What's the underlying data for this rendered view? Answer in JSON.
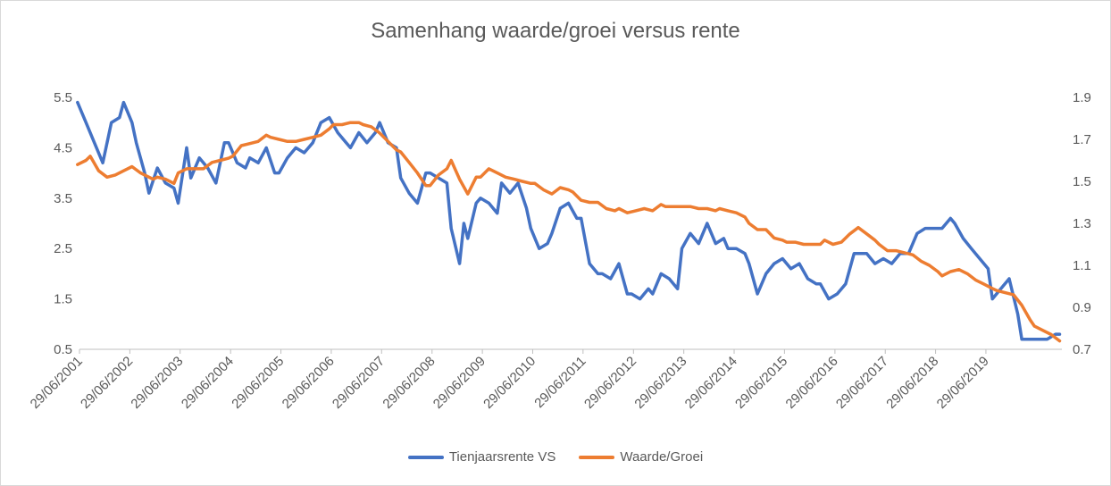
{
  "chart_data": {
    "type": "line",
    "title": "Samenhang waarde/groei versus rente",
    "xlabel": "",
    "ylabel": "",
    "x_range": [
      "2001-06-29",
      "2020-12-31"
    ],
    "x_tick_labels": [
      "29/06/2001",
      "29/06/2002",
      "29/06/2003",
      "29/06/2004",
      "29/06/2005",
      "29/06/2006",
      "29/06/2007",
      "29/06/2008",
      "29/06/2009",
      "29/06/2010",
      "29/06/2011",
      "29/06/2012",
      "29/06/2013",
      "29/06/2014",
      "29/06/2015",
      "29/06/2016",
      "29/06/2017",
      "29/06/2018",
      "29/06/2019"
    ],
    "y_left": {
      "min": 0.5,
      "max": 5.5,
      "ticks": [
        "0.5",
        "1.5",
        "2.5",
        "3.5",
        "4.5",
        "5.5"
      ]
    },
    "y_right": {
      "min": 0.7,
      "max": 1.9,
      "ticks": [
        "0.7",
        "0.9",
        "1.1",
        "1.3",
        "1.5",
        "1.7",
        "1.9"
      ]
    },
    "grid": false,
    "legend_position": "bottom",
    "series": [
      {
        "name": "Tienjaarsrente VS",
        "axis": "left",
        "color": "#4472C4",
        "points": [
          [
            "2001-06",
            5.4
          ],
          [
            "2001-08",
            5.0
          ],
          [
            "2001-10",
            4.6
          ],
          [
            "2001-12",
            4.2
          ],
          [
            "2002-02",
            5.0
          ],
          [
            "2002-04",
            5.1
          ],
          [
            "2002-05",
            5.4
          ],
          [
            "2002-07",
            5.0
          ],
          [
            "2002-08",
            4.6
          ],
          [
            "2002-10",
            4.0
          ],
          [
            "2002-11",
            3.6
          ],
          [
            "2003-01",
            4.1
          ],
          [
            "2003-03",
            3.8
          ],
          [
            "2003-05",
            3.7
          ],
          [
            "2003-06",
            3.4
          ],
          [
            "2003-08",
            4.5
          ],
          [
            "2003-09",
            3.9
          ],
          [
            "2003-11",
            4.3
          ],
          [
            "2004-01",
            4.1
          ],
          [
            "2004-03",
            3.8
          ],
          [
            "2004-05",
            4.6
          ],
          [
            "2004-06",
            4.6
          ],
          [
            "2004-08",
            4.2
          ],
          [
            "2004-10",
            4.1
          ],
          [
            "2004-11",
            4.3
          ],
          [
            "2005-01",
            4.2
          ],
          [
            "2005-03",
            4.5
          ],
          [
            "2005-05",
            4.0
          ],
          [
            "2005-06",
            4.0
          ],
          [
            "2005-08",
            4.3
          ],
          [
            "2005-10",
            4.5
          ],
          [
            "2005-12",
            4.4
          ],
          [
            "2006-02",
            4.6
          ],
          [
            "2006-04",
            5.0
          ],
          [
            "2006-06",
            5.1
          ],
          [
            "2006-08",
            4.8
          ],
          [
            "2006-10",
            4.6
          ],
          [
            "2006-11",
            4.5
          ],
          [
            "2007-01",
            4.8
          ],
          [
            "2007-03",
            4.6
          ],
          [
            "2007-05",
            4.8
          ],
          [
            "2007-06",
            5.0
          ],
          [
            "2007-08",
            4.6
          ],
          [
            "2007-10",
            4.5
          ],
          [
            "2007-11",
            3.9
          ],
          [
            "2008-01",
            3.6
          ],
          [
            "2008-03",
            3.4
          ],
          [
            "2008-05",
            4.0
          ],
          [
            "2008-06",
            4.0
          ],
          [
            "2008-08",
            3.9
          ],
          [
            "2008-10",
            3.8
          ],
          [
            "2008-11",
            2.9
          ],
          [
            "2009-01",
            2.2
          ],
          [
            "2009-02",
            3.0
          ],
          [
            "2009-03",
            2.7
          ],
          [
            "2009-05",
            3.4
          ],
          [
            "2009-06",
            3.5
          ],
          [
            "2009-08",
            3.4
          ],
          [
            "2009-10",
            3.2
          ],
          [
            "2009-11",
            3.8
          ],
          [
            "2010-01",
            3.6
          ],
          [
            "2010-03",
            3.8
          ],
          [
            "2010-05",
            3.3
          ],
          [
            "2010-06",
            2.9
          ],
          [
            "2010-08",
            2.5
          ],
          [
            "2010-10",
            2.6
          ],
          [
            "2010-11",
            2.8
          ],
          [
            "2011-01",
            3.3
          ],
          [
            "2011-03",
            3.4
          ],
          [
            "2011-05",
            3.1
          ],
          [
            "2011-06",
            3.1
          ],
          [
            "2011-08",
            2.2
          ],
          [
            "2011-10",
            2.0
          ],
          [
            "2011-11",
            2.0
          ],
          [
            "2012-01",
            1.9
          ],
          [
            "2012-03",
            2.2
          ],
          [
            "2012-05",
            1.6
          ],
          [
            "2012-06",
            1.6
          ],
          [
            "2012-08",
            1.5
          ],
          [
            "2012-10",
            1.7
          ],
          [
            "2012-11",
            1.6
          ],
          [
            "2013-01",
            2.0
          ],
          [
            "2013-03",
            1.9
          ],
          [
            "2013-05",
            1.7
          ],
          [
            "2013-06",
            2.5
          ],
          [
            "2013-08",
            2.8
          ],
          [
            "2013-10",
            2.6
          ],
          [
            "2013-12",
            3.0
          ],
          [
            "2014-02",
            2.6
          ],
          [
            "2014-04",
            2.7
          ],
          [
            "2014-05",
            2.5
          ],
          [
            "2014-07",
            2.5
          ],
          [
            "2014-09",
            2.4
          ],
          [
            "2014-10",
            2.2
          ],
          [
            "2014-12",
            1.6
          ],
          [
            "2015-02",
            2.0
          ],
          [
            "2015-04",
            2.2
          ],
          [
            "2015-06",
            2.3
          ],
          [
            "2015-08",
            2.1
          ],
          [
            "2015-10",
            2.2
          ],
          [
            "2015-12",
            1.9
          ],
          [
            "2016-02",
            1.8
          ],
          [
            "2016-03",
            1.8
          ],
          [
            "2016-05",
            1.5
          ],
          [
            "2016-07",
            1.6
          ],
          [
            "2016-09",
            1.8
          ],
          [
            "2016-11",
            2.4
          ],
          [
            "2016-12",
            2.4
          ],
          [
            "2017-02",
            2.4
          ],
          [
            "2017-04",
            2.2
          ],
          [
            "2017-06",
            2.3
          ],
          [
            "2017-08",
            2.2
          ],
          [
            "2017-10",
            2.4
          ],
          [
            "2017-12",
            2.4
          ],
          [
            "2018-02",
            2.8
          ],
          [
            "2018-04",
            2.9
          ],
          [
            "2018-06",
            2.9
          ],
          [
            "2018-08",
            2.9
          ],
          [
            "2018-10",
            3.1
          ],
          [
            "2018-11",
            3.0
          ],
          [
            "2019-01",
            2.7
          ],
          [
            "2019-03",
            2.5
          ],
          [
            "2019-05",
            2.3
          ],
          [
            "2019-07",
            2.1
          ],
          [
            "2019-08",
            1.5
          ],
          [
            "2019-10",
            1.7
          ],
          [
            "2019-12",
            1.9
          ],
          [
            "2020-02",
            1.2
          ],
          [
            "2020-03",
            0.7
          ],
          [
            "2020-05",
            0.7
          ],
          [
            "2020-07",
            0.7
          ],
          [
            "2020-09",
            0.7
          ],
          [
            "2020-11",
            0.8
          ],
          [
            "2020-12",
            0.8
          ]
        ]
      },
      {
        "name": "Waarde/Groei",
        "axis": "right",
        "color": "#ED7D31",
        "points": [
          [
            "2001-06",
            1.58
          ],
          [
            "2001-08",
            1.6
          ],
          [
            "2001-09",
            1.62
          ],
          [
            "2001-11",
            1.55
          ],
          [
            "2002-01",
            1.52
          ],
          [
            "2002-03",
            1.53
          ],
          [
            "2002-05",
            1.55
          ],
          [
            "2002-07",
            1.57
          ],
          [
            "2002-09",
            1.54
          ],
          [
            "2002-10",
            1.53
          ],
          [
            "2002-12",
            1.51
          ],
          [
            "2003-01",
            1.52
          ],
          [
            "2003-03",
            1.51
          ],
          [
            "2003-05",
            1.49
          ],
          [
            "2003-06",
            1.54
          ],
          [
            "2003-08",
            1.56
          ],
          [
            "2003-10",
            1.56
          ],
          [
            "2003-12",
            1.56
          ],
          [
            "2004-02",
            1.59
          ],
          [
            "2004-04",
            1.6
          ],
          [
            "2004-06",
            1.61
          ],
          [
            "2004-07",
            1.62
          ],
          [
            "2004-09",
            1.67
          ],
          [
            "2004-11",
            1.68
          ],
          [
            "2005-01",
            1.69
          ],
          [
            "2005-03",
            1.72
          ],
          [
            "2005-04",
            1.71
          ],
          [
            "2005-06",
            1.7
          ],
          [
            "2005-08",
            1.69
          ],
          [
            "2005-10",
            1.69
          ],
          [
            "2005-12",
            1.7
          ],
          [
            "2006-02",
            1.71
          ],
          [
            "2006-04",
            1.72
          ],
          [
            "2006-06",
            1.75
          ],
          [
            "2006-07",
            1.77
          ],
          [
            "2006-09",
            1.77
          ],
          [
            "2006-11",
            1.78
          ],
          [
            "2007-01",
            1.78
          ],
          [
            "2007-02",
            1.77
          ],
          [
            "2007-04",
            1.76
          ],
          [
            "2007-06",
            1.73
          ],
          [
            "2007-08",
            1.69
          ],
          [
            "2007-10",
            1.65
          ],
          [
            "2007-11",
            1.64
          ],
          [
            "2008-01",
            1.59
          ],
          [
            "2008-03",
            1.54
          ],
          [
            "2008-05",
            1.48
          ],
          [
            "2008-06",
            1.48
          ],
          [
            "2008-08",
            1.53
          ],
          [
            "2008-10",
            1.56
          ],
          [
            "2008-11",
            1.6
          ],
          [
            "2009-01",
            1.51
          ],
          [
            "2009-03",
            1.44
          ],
          [
            "2009-05",
            1.52
          ],
          [
            "2009-06",
            1.52
          ],
          [
            "2009-08",
            1.56
          ],
          [
            "2009-10",
            1.54
          ],
          [
            "2009-12",
            1.52
          ],
          [
            "2010-02",
            1.51
          ],
          [
            "2010-04",
            1.5
          ],
          [
            "2010-06",
            1.49
          ],
          [
            "2010-07",
            1.49
          ],
          [
            "2010-09",
            1.46
          ],
          [
            "2010-11",
            1.44
          ],
          [
            "2011-01",
            1.47
          ],
          [
            "2011-03",
            1.46
          ],
          [
            "2011-04",
            1.45
          ],
          [
            "2011-06",
            1.41
          ],
          [
            "2011-08",
            1.4
          ],
          [
            "2011-10",
            1.4
          ],
          [
            "2011-12",
            1.37
          ],
          [
            "2012-02",
            1.36
          ],
          [
            "2012-03",
            1.37
          ],
          [
            "2012-05",
            1.35
          ],
          [
            "2012-07",
            1.36
          ],
          [
            "2012-09",
            1.37
          ],
          [
            "2012-11",
            1.36
          ],
          [
            "2013-01",
            1.39
          ],
          [
            "2013-02",
            1.38
          ],
          [
            "2013-04",
            1.38
          ],
          [
            "2013-06",
            1.38
          ],
          [
            "2013-08",
            1.38
          ],
          [
            "2013-10",
            1.37
          ],
          [
            "2013-12",
            1.37
          ],
          [
            "2014-02",
            1.36
          ],
          [
            "2014-03",
            1.37
          ],
          [
            "2014-05",
            1.36
          ],
          [
            "2014-07",
            1.35
          ],
          [
            "2014-09",
            1.33
          ],
          [
            "2014-10",
            1.3
          ],
          [
            "2014-12",
            1.27
          ],
          [
            "2015-02",
            1.27
          ],
          [
            "2015-04",
            1.23
          ],
          [
            "2015-06",
            1.22
          ],
          [
            "2015-07",
            1.21
          ],
          [
            "2015-09",
            1.21
          ],
          [
            "2015-11",
            1.2
          ],
          [
            "2016-01",
            1.2
          ],
          [
            "2016-03",
            1.2
          ],
          [
            "2016-04",
            1.22
          ],
          [
            "2016-06",
            1.2
          ],
          [
            "2016-08",
            1.21
          ],
          [
            "2016-10",
            1.25
          ],
          [
            "2016-12",
            1.28
          ],
          [
            "2017-02",
            1.25
          ],
          [
            "2017-04",
            1.22
          ],
          [
            "2017-05",
            1.2
          ],
          [
            "2017-07",
            1.17
          ],
          [
            "2017-09",
            1.17
          ],
          [
            "2017-11",
            1.16
          ],
          [
            "2018-01",
            1.15
          ],
          [
            "2018-03",
            1.12
          ],
          [
            "2018-05",
            1.1
          ],
          [
            "2018-07",
            1.07
          ],
          [
            "2018-08",
            1.05
          ],
          [
            "2018-10",
            1.07
          ],
          [
            "2018-12",
            1.08
          ],
          [
            "2019-02",
            1.06
          ],
          [
            "2019-04",
            1.03
          ],
          [
            "2019-06",
            1.01
          ],
          [
            "2019-08",
            0.99
          ],
          [
            "2019-09",
            0.98
          ],
          [
            "2019-11",
            0.97
          ],
          [
            "2020-01",
            0.96
          ],
          [
            "2020-03",
            0.91
          ],
          [
            "2020-05",
            0.84
          ],
          [
            "2020-06",
            0.81
          ],
          [
            "2020-08",
            0.79
          ],
          [
            "2020-10",
            0.77
          ],
          [
            "2020-12",
            0.74
          ]
        ]
      }
    ]
  }
}
